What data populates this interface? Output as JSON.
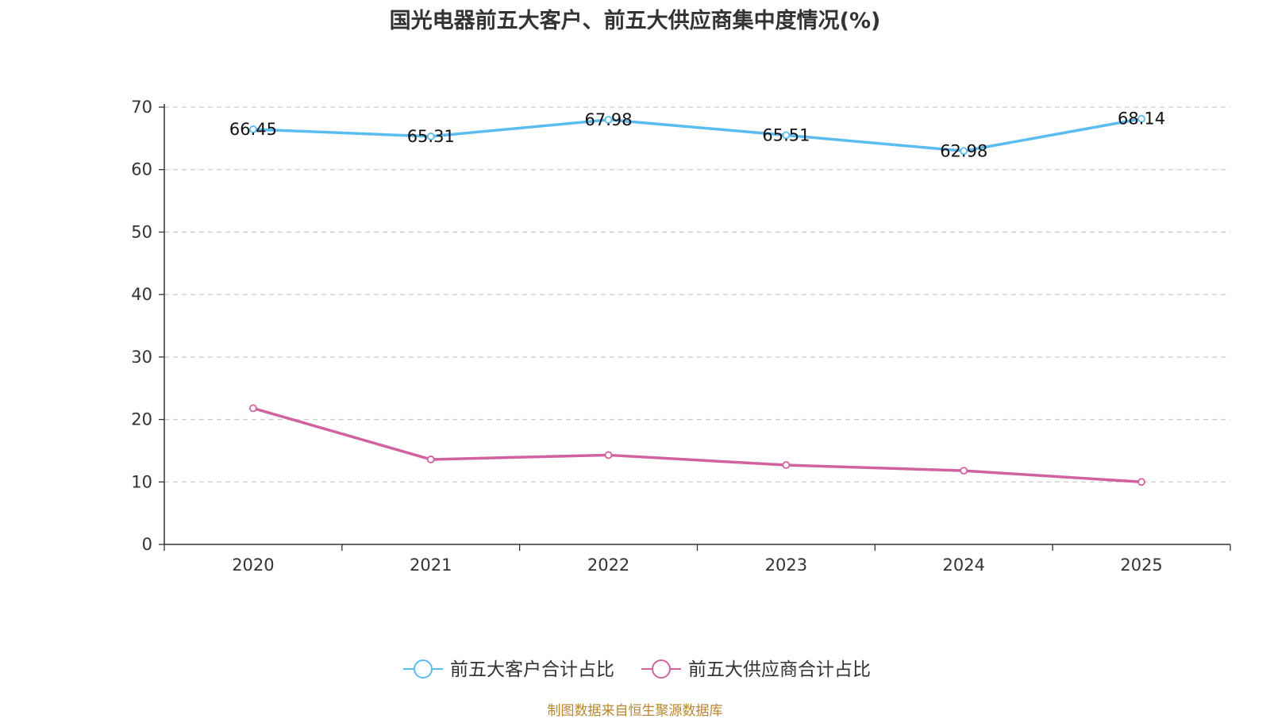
{
  "chart_data": {
    "type": "line",
    "title": "国光电器前五大客户、前五大供应商集中度情况(%)",
    "categories": [
      "2020",
      "2021",
      "2022",
      "2023",
      "2024",
      "2025"
    ],
    "series": [
      {
        "name": "前五大客户合计占比",
        "color": "#5bbcf0",
        "values": [
          66.45,
          65.31,
          67.98,
          65.51,
          62.98,
          68.14
        ],
        "show_labels": true
      },
      {
        "name": "前五大供应商合计占比",
        "color": "#d1629f",
        "values": [
          21.8,
          13.6,
          14.3,
          12.7,
          11.8,
          10.0
        ],
        "show_labels": false
      }
    ],
    "yticks": [
      0,
      10,
      20,
      30,
      40,
      50,
      60,
      70
    ],
    "ylim": [
      0,
      70
    ],
    "grid": true,
    "legend": "bottom-center",
    "xlabel": "",
    "ylabel": ""
  },
  "source_note": "制图数据来自恒生聚源数据库"
}
